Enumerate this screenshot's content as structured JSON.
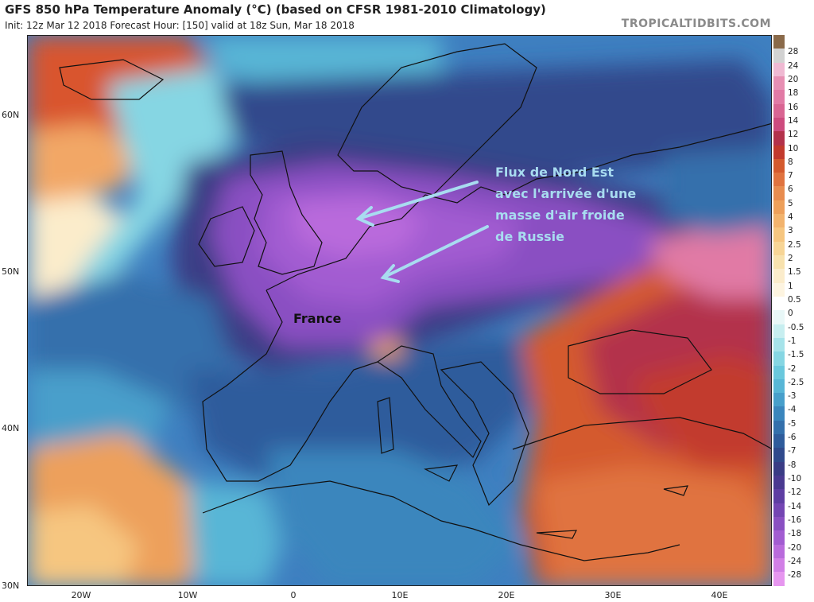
{
  "header": {
    "title": "GFS 850 hPa Temperature Anomaly (°C) (based on CFSR 1981-2010 Climatology)",
    "subtitle": "Init: 12z Mar 12 2018   Forecast Hour: [150]   valid at 18z Sun, Mar 18 2018",
    "watermark": "TROPICALTIDBITS.COM"
  },
  "axes": {
    "lat_labels": [
      "60N",
      "50N",
      "40N",
      "30N"
    ],
    "lon_labels": [
      "20W",
      "10W",
      "0",
      "10E",
      "20E",
      "30E",
      "40E"
    ]
  },
  "annotations": {
    "flux_lines": [
      "Flux de Nord Est",
      "avec l'arrivée d'une",
      "masse d'air froide",
      "de Russie"
    ],
    "country_label": "France",
    "text_color": "#a8dcf0",
    "arrow_color": "#a8dcf0"
  },
  "colorbar": {
    "labels": [
      "28",
      "24",
      "20",
      "18",
      "16",
      "14",
      "12",
      "10",
      "8",
      "7",
      "6",
      "5",
      "4",
      "3",
      "2.5",
      "2",
      "1.5",
      "1",
      "0.5",
      "0",
      "-0.5",
      "-1",
      "-1.5",
      "-2",
      "-2.5",
      "-3",
      "-4",
      "-5",
      "-6",
      "-7",
      "-8",
      "-10",
      "-12",
      "-14",
      "-16",
      "-18",
      "-20",
      "-24",
      "-28"
    ],
    "colors": [
      "#d2d2d2",
      "#efb9d2",
      "#e78fb3",
      "#e17aa5",
      "#d96593",
      "#cd4b7e",
      "#b3324b",
      "#c23a2d",
      "#d45a2e",
      "#e0733f",
      "#e88c4f",
      "#eda05b",
      "#f2b36d",
      "#f6c680",
      "#f7d596",
      "#f8e2ae",
      "#fbeccb",
      "#fdf4e0",
      "#ffffff",
      "#e8f7f7",
      "#c7eef0",
      "#a6e3ea",
      "#86d6e3",
      "#6ac8dd",
      "#58b6d6",
      "#489fcb",
      "#3b86bd",
      "#3470ac",
      "#2f5c9c",
      "#304a8c",
      "#3a3c85",
      "#4a3a91",
      "#5e3ea3",
      "#7446b3",
      "#8a50c2",
      "#a25cd1",
      "#b96bdc",
      "#d17fe6",
      "#e696ef"
    ]
  },
  "colors": {
    "ocean_base": "#3e7fc0",
    "land_outline": "#111111"
  }
}
